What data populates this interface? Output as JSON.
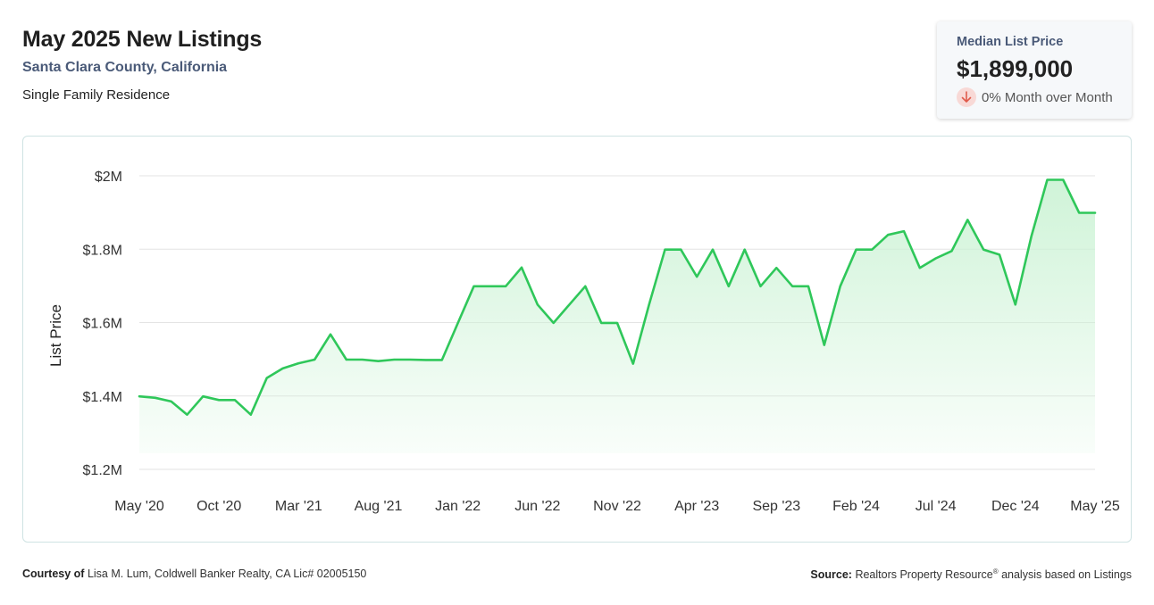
{
  "header": {
    "title": "May 2025 New Listings",
    "subtitle": "Santa Clara County, California",
    "segment": "Single Family Residence"
  },
  "kpi": {
    "label": "Median List Price",
    "value": "$1,899,000",
    "change": "0% Month over Month",
    "change_icon": "arrow-down-icon",
    "change_color": "#e05a4b"
  },
  "footer": {
    "courtesy_label": "Courtesy of",
    "courtesy_text": "Lisa M. Lum, Coldwell Banker Realty, CA Lic# 02005150",
    "source_label": "Source:",
    "source_text_a": "Realtors Property Resource",
    "source_reg": "®",
    "source_text_b": " analysis based on Listings"
  },
  "colors": {
    "line": "#2fc75a",
    "fill_top": "#cdf3d6",
    "grid": "#e3e3e3"
  },
  "chart_data": {
    "type": "area",
    "title": "",
    "xlabel": "",
    "ylabel": "List Price",
    "ylim": [
      1200000,
      2000000
    ],
    "y_ticks": [
      1200000,
      1400000,
      1600000,
      1800000,
      2000000
    ],
    "y_tick_labels": [
      "$1.2M",
      "$1.4M",
      "$1.6M",
      "$1.8M",
      "$2M"
    ],
    "x_tick_labels": [
      "May '20",
      "Oct '20",
      "Mar '21",
      "Aug '21",
      "Jan '22",
      "Jun '22",
      "Nov '22",
      "Apr '23",
      "Sep '23",
      "Feb '24",
      "Jul '24",
      "Dec '24",
      "May '25"
    ],
    "grid": true,
    "legend": "none",
    "x": [
      "2020-05",
      "2020-06",
      "2020-07",
      "2020-08",
      "2020-09",
      "2020-10",
      "2020-11",
      "2020-12",
      "2021-01",
      "2021-02",
      "2021-03",
      "2021-04",
      "2021-05",
      "2021-06",
      "2021-07",
      "2021-08",
      "2021-09",
      "2021-10",
      "2021-11",
      "2021-12",
      "2022-01",
      "2022-02",
      "2022-03",
      "2022-04",
      "2022-05",
      "2022-06",
      "2022-07",
      "2022-08",
      "2022-09",
      "2022-10",
      "2022-11",
      "2022-12",
      "2023-01",
      "2023-02",
      "2023-03",
      "2023-04",
      "2023-05",
      "2023-06",
      "2023-07",
      "2023-08",
      "2023-09",
      "2023-10",
      "2023-11",
      "2023-12",
      "2024-01",
      "2024-02",
      "2024-03",
      "2024-04",
      "2024-05",
      "2024-06",
      "2024-07",
      "2024-08",
      "2024-09",
      "2024-10",
      "2024-11",
      "2024-12",
      "2025-01",
      "2025-02",
      "2025-03",
      "2025-04",
      "2025-05"
    ],
    "series": [
      {
        "name": "List Price",
        "values": [
          1399000,
          1395000,
          1385000,
          1349000,
          1399000,
          1389000,
          1389000,
          1349000,
          1449000,
          1475000,
          1489000,
          1499000,
          1568000,
          1499000,
          1499000,
          1495000,
          1499000,
          1499000,
          1498000,
          1498000,
          1599000,
          1699000,
          1699000,
          1699000,
          1750000,
          1649000,
          1599000,
          1649000,
          1699000,
          1599000,
          1599000,
          1488000,
          1649000,
          1799000,
          1799000,
          1725000,
          1799000,
          1699000,
          1799000,
          1699000,
          1749000,
          1699000,
          1699000,
          1539000,
          1699000,
          1799000,
          1799000,
          1839000,
          1849000,
          1749000,
          1775000,
          1795000,
          1880000,
          1799000,
          1785000,
          1649000,
          1835000,
          1989000,
          1989000,
          1899000,
          1899000
        ]
      }
    ]
  }
}
